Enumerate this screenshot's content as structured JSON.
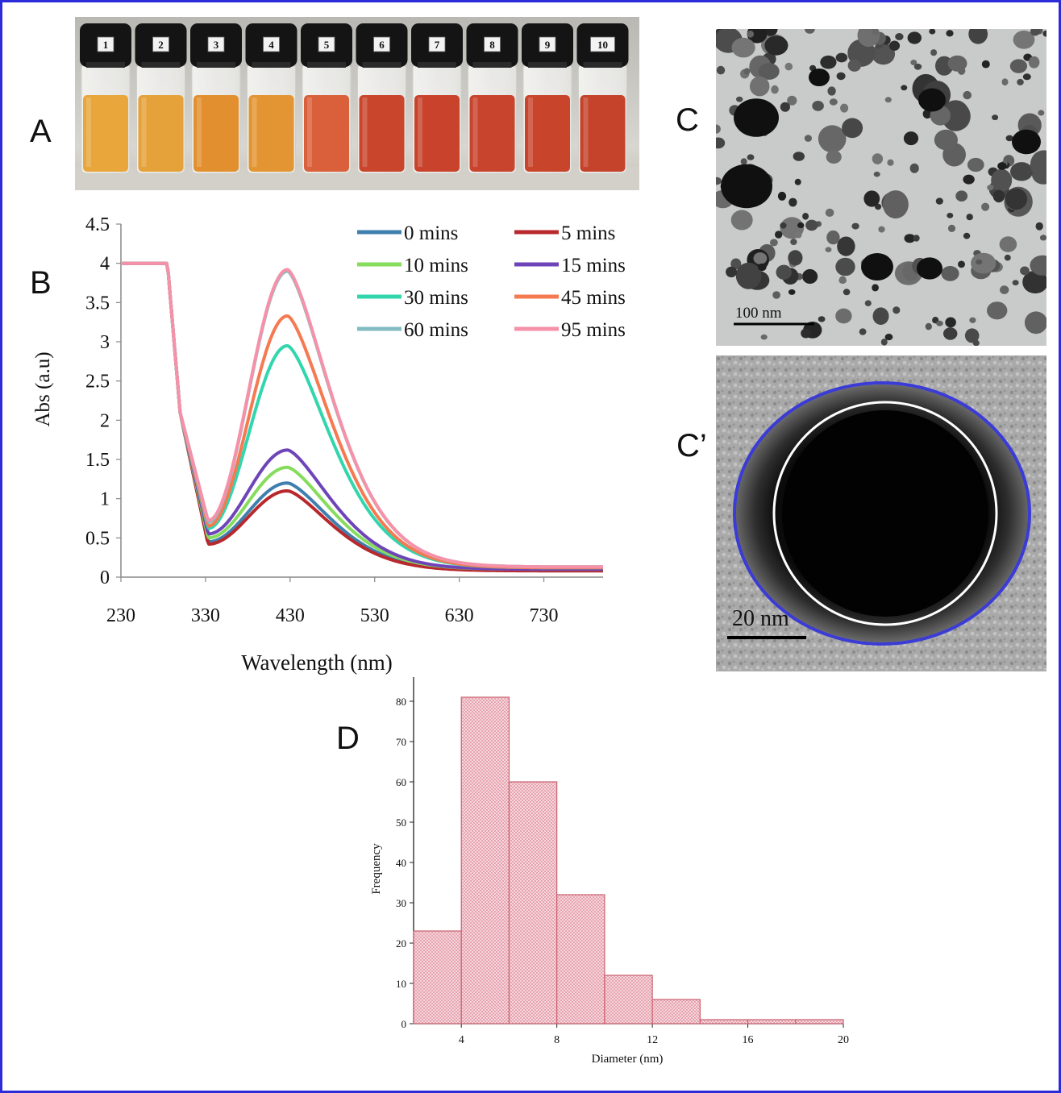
{
  "panels": {
    "a": "A",
    "b": "B",
    "c": "C",
    "c_prime": "C’",
    "d": "D"
  },
  "vials": {
    "labels": [
      "1",
      "2",
      "3",
      "4",
      "5",
      "6",
      "7",
      "8",
      "9",
      "10"
    ],
    "liquid_colors": [
      "#e8a63b",
      "#e6a23a",
      "#e2902f",
      "#e39533",
      "#d9603a",
      "#c9452c",
      "#c9432c",
      "#c8442c",
      "#c8452c",
      "#c5432b"
    ]
  },
  "tem": {
    "c_scalebar": "100 nm",
    "c_prime_scalebar": "20 nm",
    "outer_circle_color": "#3b3bd6",
    "inner_circle_color": "#ffffff"
  },
  "chart_data": [
    {
      "type": "line",
      "xlabel": "Wavelength (nm)",
      "ylabel": "Abs (a.u)",
      "xlim": [
        230,
        800
      ],
      "ylim": [
        0,
        4.5
      ],
      "xticks": [
        230,
        330,
        430,
        530,
        630,
        730
      ],
      "yticks": [
        0,
        0.5,
        1,
        1.5,
        2,
        2.5,
        3,
        3.5,
        4,
        4.5
      ],
      "legend_position": "top-right",
      "grid": false,
      "series": [
        {
          "name": "0 mins",
          "color": "#3f7fae",
          "peak": 1.2,
          "trough": 0.45,
          "tail": 0.09
        },
        {
          "name": "5 mins",
          "color": "#b8282c",
          "peak": 1.1,
          "trough": 0.42,
          "tail": 0.08
        },
        {
          "name": "10 mins",
          "color": "#86dc5c",
          "peak": 1.4,
          "trough": 0.5,
          "tail": 0.1
        },
        {
          "name": "15 mins",
          "color": "#6e45b8",
          "peak": 1.62,
          "trough": 0.55,
          "tail": 0.1
        },
        {
          "name": "30 mins",
          "color": "#32d6ad",
          "peak": 2.95,
          "trough": 0.62,
          "tail": 0.12
        },
        {
          "name": "45 mins",
          "color": "#f57a52",
          "peak": 3.33,
          "trough": 0.65,
          "tail": 0.12
        },
        {
          "name": "60 mins",
          "color": "#82bcc2",
          "peak": 3.9,
          "trough": 0.7,
          "tail": 0.13
        },
        {
          "name": "95 mins",
          "color": "#f591a8",
          "peak": 3.92,
          "trough": 0.72,
          "tail": 0.13
        }
      ]
    },
    {
      "type": "bar",
      "xlabel": "Diameter (nm)",
      "ylabel": "Frequency",
      "bin_edges": [
        2,
        4,
        6,
        8,
        10,
        12,
        14,
        16,
        18,
        20
      ],
      "values": [
        23,
        81,
        60,
        32,
        12,
        6,
        1,
        1,
        1
      ],
      "xlim": [
        2,
        20
      ],
      "ylim": [
        0,
        86
      ],
      "xticks": [
        4,
        8,
        12,
        16,
        20
      ],
      "yticks": [
        0,
        10,
        20,
        30,
        40,
        50,
        60,
        70,
        80
      ],
      "bar_fill": "#f2c3cb",
      "bar_edge": "#c9606f"
    }
  ]
}
